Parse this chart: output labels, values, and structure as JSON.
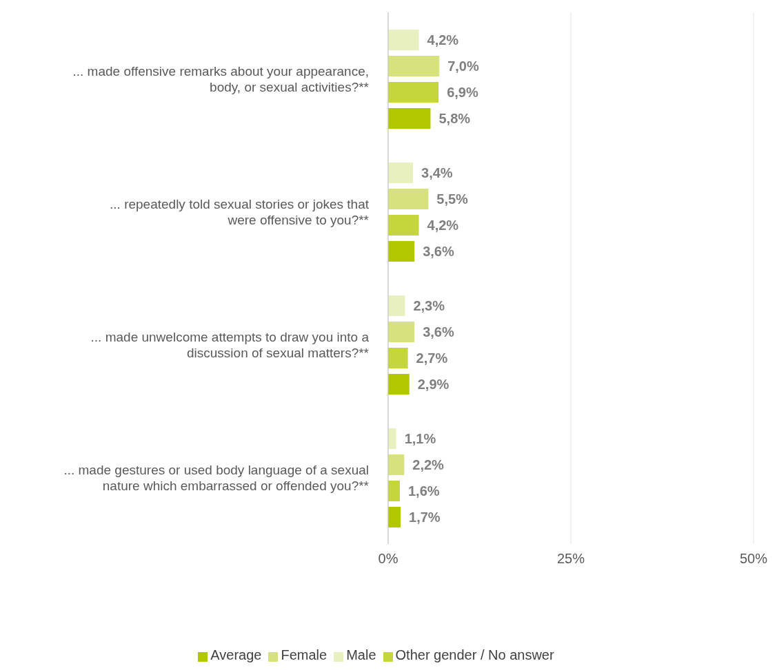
{
  "chart_data": {
    "type": "bar",
    "orientation": "horizontal",
    "categories": [
      "... made offensive remarks about your appearance, body, or sexual activities?**",
      "... repeatedly told sexual stories or jokes that were offensive to you?**",
      "... made unwelcome attempts to draw you into a discussion of sexual matters?**",
      "... made gestures or used body language of a sexual nature which embarrassed or offended you?**"
    ],
    "series": [
      {
        "name": "Male",
        "color": "#e8f0c0",
        "values": [
          4.2,
          3.4,
          2.3,
          1.1
        ],
        "value_labels": [
          "4,2%",
          "3,4%",
          "2,3%",
          "1,1%"
        ]
      },
      {
        "name": "Female",
        "color": "#d7e27f",
        "values": [
          7.0,
          5.5,
          3.6,
          2.2
        ],
        "value_labels": [
          "7,0%",
          "5,5%",
          "3,6%",
          "2,2%"
        ]
      },
      {
        "name": "Other gender / No answer",
        "color": "#c5d63c",
        "values": [
          6.9,
          4.2,
          2.7,
          1.6
        ],
        "value_labels": [
          "6,9%",
          "4,2%",
          "2,7%",
          "1,6%"
        ]
      },
      {
        "name": "Average",
        "color": "#b1c800",
        "values": [
          5.8,
          3.6,
          2.9,
          1.7
        ],
        "value_labels": [
          "5,8%",
          "3,6%",
          "2,9%",
          "1,7%"
        ]
      }
    ],
    "xlim": [
      0,
      50
    ],
    "xticks": [
      {
        "value": 0,
        "label": "0%"
      },
      {
        "value": 25,
        "label": "25%"
      },
      {
        "value": 50,
        "label": "50%"
      }
    ],
    "grid": "x",
    "legend": "bottom"
  }
}
